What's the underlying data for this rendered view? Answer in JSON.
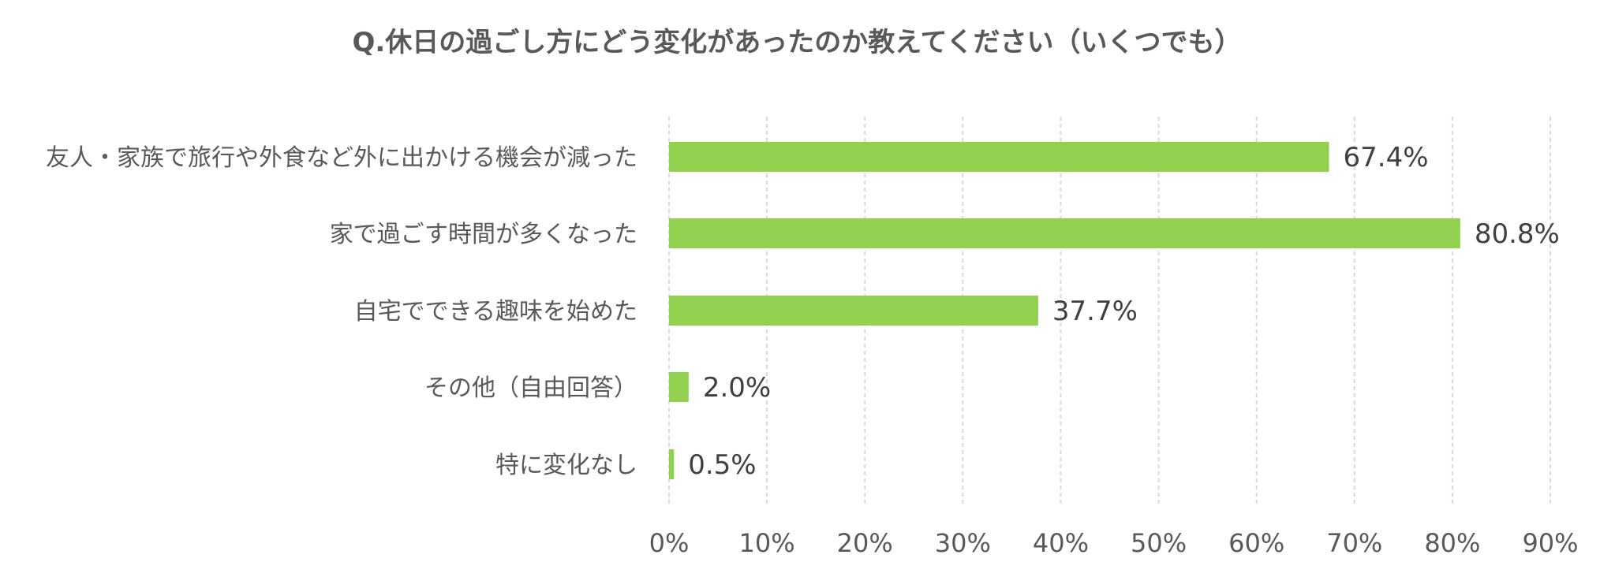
{
  "chart_data": {
    "type": "bar",
    "orientation": "horizontal",
    "title": "Q.休日の過ごし方にどう変化があったのか教えてください（いくつでも）",
    "categories": [
      "友人・家族で旅行や外食など外に出かける機会が減った",
      "家で過ごす時間が多くなった",
      "自宅でできる趣味を始めた",
      "その他（自由回答）",
      "特に変化なし"
    ],
    "values": [
      67.4,
      80.8,
      37.7,
      2.0,
      0.5
    ],
    "value_labels": [
      "67.4%",
      "80.8%",
      "37.7%",
      "2.0%",
      "0.5%"
    ],
    "x_ticks": [
      0,
      10,
      20,
      30,
      40,
      50,
      60,
      70,
      80,
      90
    ],
    "x_tick_labels": [
      "0%",
      "10%",
      "20%",
      "30%",
      "40%",
      "50%",
      "60%",
      "70%",
      "80%",
      "90%"
    ],
    "xlim": [
      0,
      90
    ],
    "grid": true,
    "legend": "none",
    "bar_color": "#92d050",
    "grid_color": "#d9d9d9"
  }
}
